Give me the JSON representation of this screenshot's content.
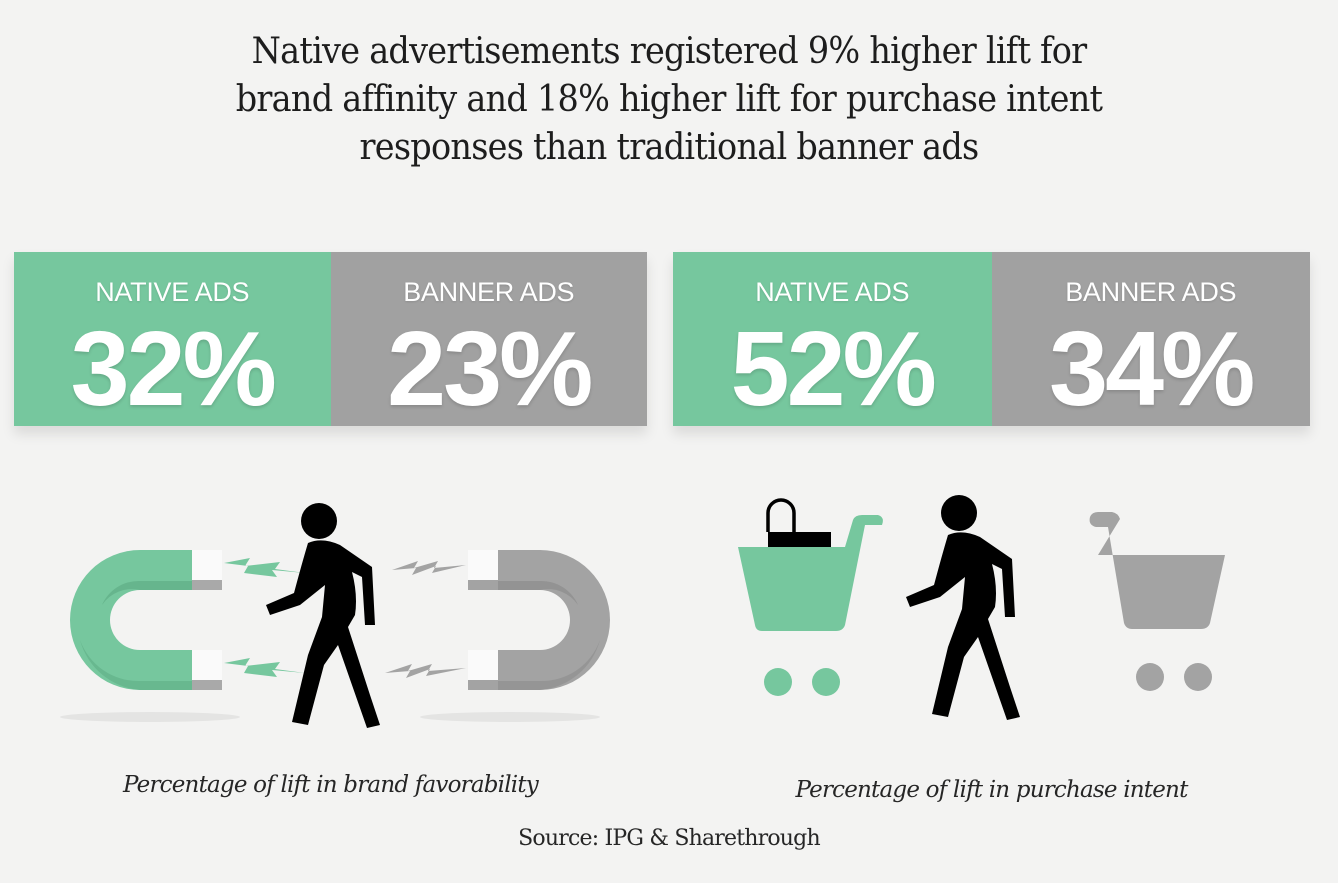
{
  "headline": {
    "lines": [
      "Native advertisements registered 9% higher lift for",
      "brand affinity and 18% higher lift for purchase intent",
      "responses than traditional banner ads"
    ]
  },
  "colors": {
    "native": "#76c79e",
    "banner": "#a1a1a1",
    "figure": "#000000",
    "background": "#f3f3f2"
  },
  "panels": [
    {
      "native": {
        "label": "NATIVE ADS",
        "value": "32%"
      },
      "banner": {
        "label": "BANNER ADS",
        "value": "23%"
      },
      "illustration": "magnets-walker-icon",
      "caption": "Percentage of lift in brand favorability"
    },
    {
      "native": {
        "label": "NATIVE ADS",
        "value": "52%"
      },
      "banner": {
        "label": "BANNER ADS",
        "value": "34%"
      },
      "illustration": "shopping-carts-walker-icon",
      "caption": "Percentage of lift in purchase intent"
    }
  ],
  "source": "Source: IPG & Sharethrough"
}
